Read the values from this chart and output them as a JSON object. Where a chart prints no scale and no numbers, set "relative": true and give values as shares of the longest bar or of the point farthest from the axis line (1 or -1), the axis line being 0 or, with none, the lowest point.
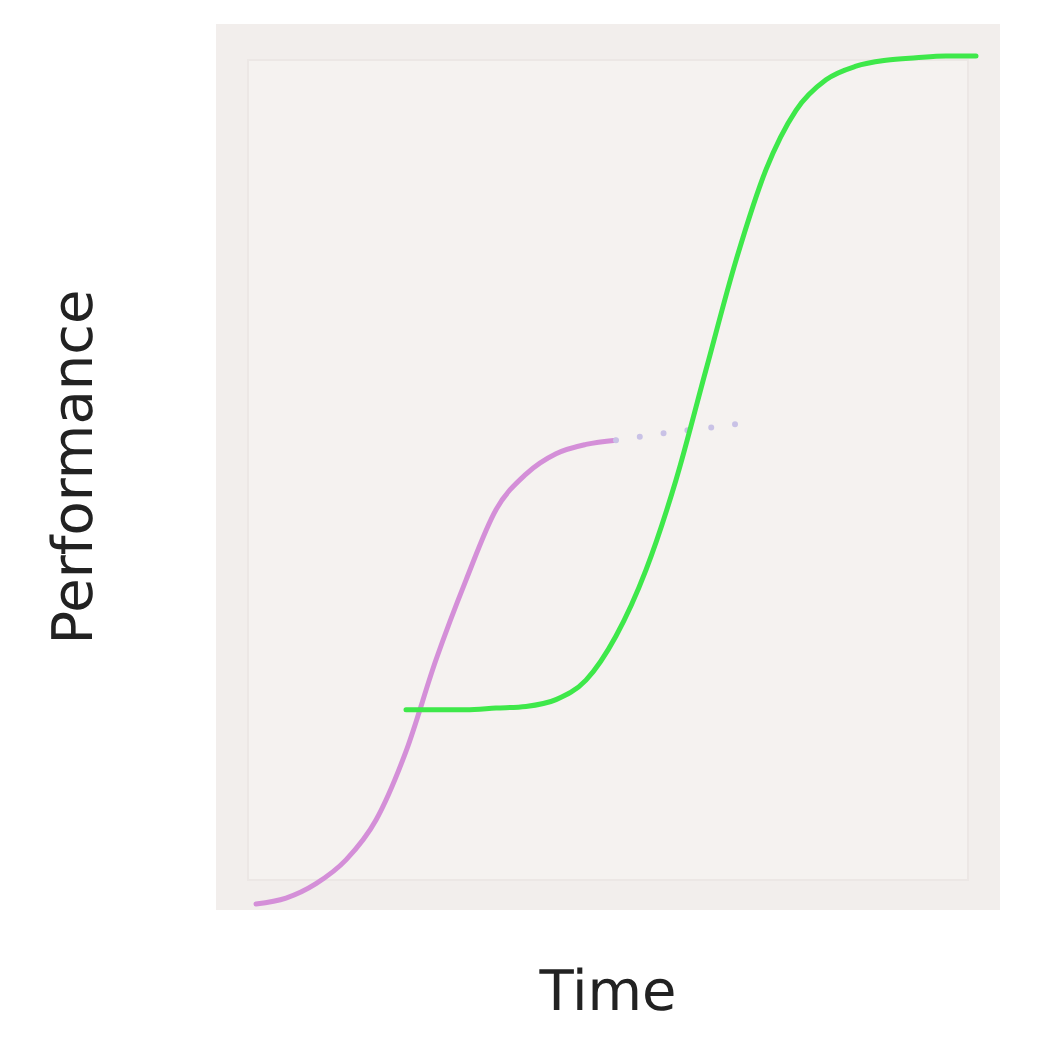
{
  "chart_data": {
    "type": "line",
    "relative": true,
    "xlabel": "Time",
    "ylabel": "Performance",
    "categories": [
      null,
      null,
      null,
      null,
      null,
      null,
      null,
      null,
      null,
      null,
      null,
      null,
      null,
      null,
      null,
      null,
      null,
      null,
      null,
      null,
      null,
      null,
      null,
      null,
      null
    ],
    "series": [
      {
        "color": "#d48fd8",
        "line_style": "solid",
        "values": [
          0,
          0.007,
          0.024,
          0.052,
          0.099,
          0.18,
          0.288,
          0.382,
          0.465,
          0.507,
          0.531,
          0.542,
          0.547,
          null,
          null,
          null,
          null,
          null,
          null,
          null,
          null,
          null,
          null,
          null,
          null
        ]
      },
      {
        "color": "#c9c2e6",
        "line_style": "dotted",
        "values": [
          null,
          null,
          null,
          null,
          null,
          null,
          null,
          null,
          null,
          null,
          null,
          null,
          0.547,
          0.552,
          0.557,
          0.561,
          0.566,
          null,
          null,
          null,
          null,
          null,
          null,
          null,
          null
        ]
      },
      {
        "color": "#3ee84a",
        "line_style": "solid",
        "values": [
          null,
          null,
          null,
          null,
          null,
          0.229,
          0.229,
          0.229,
          0.231,
          0.233,
          0.241,
          0.264,
          0.316,
          0.394,
          0.5,
          0.63,
          0.759,
          0.866,
          0.936,
          0.972,
          0.988,
          0.995,
          0.998,
          1,
          1
        ]
      }
    ]
  }
}
